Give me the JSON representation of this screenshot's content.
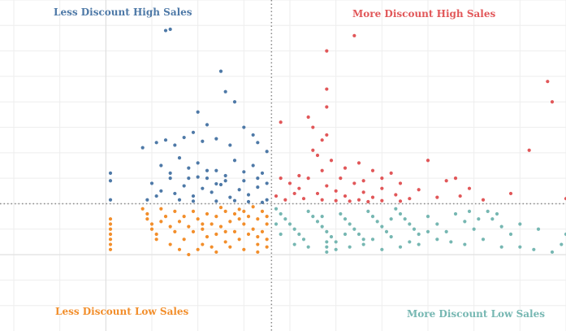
{
  "chart_data": {
    "type": "scatter",
    "title": "",
    "xlabel": "",
    "ylabel": "",
    "grid": true,
    "reference_lines": {
      "x": 0.36,
      "y": 200
    },
    "xlim": [
      -0.23,
      1.0
    ],
    "ylim": [
      -300,
      1000
    ],
    "quadrant_labels": [
      {
        "key": "tl",
        "text": "Less Discount High Sales",
        "color": "#4e79a7"
      },
      {
        "key": "tr",
        "text": "More Discount High Sales",
        "color": "#e15759"
      },
      {
        "key": "bl",
        "text": "Less Discount Low Sales",
        "color": "#f28e2b"
      },
      {
        "key": "br",
        "text": "More Discount Low Sales",
        "color": "#76b7b2"
      }
    ],
    "series": [
      {
        "color": "#4e79a7",
        "points": [
          [
            0.13,
            880
          ],
          [
            0.14,
            885
          ],
          [
            0.2,
            560
          ],
          [
            0.19,
            480
          ],
          [
            0.22,
            510
          ],
          [
            0.3,
            500
          ],
          [
            0.26,
            640
          ],
          [
            0.25,
            720
          ],
          [
            0.28,
            600
          ],
          [
            0.08,
            420
          ],
          [
            0.11,
            440
          ],
          [
            0.13,
            450
          ],
          [
            0.15,
            430
          ],
          [
            0.17,
            460
          ],
          [
            0.21,
            445
          ],
          [
            0.24,
            455
          ],
          [
            0.27,
            430
          ],
          [
            0.32,
            470
          ],
          [
            0.33,
            440
          ],
          [
            0.35,
            405
          ],
          [
            0.12,
            350
          ],
          [
            0.14,
            320
          ],
          [
            0.16,
            380
          ],
          [
            0.18,
            340
          ],
          [
            0.2,
            360
          ],
          [
            0.22,
            300
          ],
          [
            0.24,
            330
          ],
          [
            0.26,
            310
          ],
          [
            0.28,
            370
          ],
          [
            0.3,
            290
          ],
          [
            0.32,
            350
          ],
          [
            0.34,
            320
          ],
          [
            0.35,
            280
          ],
          [
            0.1,
            280
          ],
          [
            0.12,
            250
          ],
          [
            0.15,
            240
          ],
          [
            0.17,
            270
          ],
          [
            0.19,
            230
          ],
          [
            0.21,
            260
          ],
          [
            0.23,
            245
          ],
          [
            0.25,
            275
          ],
          [
            0.27,
            225
          ],
          [
            0.29,
            255
          ],
          [
            0.31,
            235
          ],
          [
            0.33,
            265
          ],
          [
            0.35,
            215
          ],
          [
            0.01,
            320
          ],
          [
            0.01,
            290
          ],
          [
            0.01,
            215
          ],
          [
            0.09,
            215
          ],
          [
            0.11,
            230
          ],
          [
            0.16,
            215
          ],
          [
            0.19,
            210
          ],
          [
            0.24,
            210
          ],
          [
            0.28,
            212
          ],
          [
            0.31,
            208
          ],
          [
            0.34,
            205
          ],
          [
            0.18,
            300
          ],
          [
            0.22,
            330
          ],
          [
            0.26,
            290
          ],
          [
            0.3,
            325
          ],
          [
            0.14,
            300
          ],
          [
            0.2,
            305
          ],
          [
            0.24,
            278
          ],
          [
            0.33,
            300
          ]
        ]
      },
      {
        "color": "#e15759",
        "points": [
          [
            0.54,
            860
          ],
          [
            0.48,
            800
          ],
          [
            0.48,
            650
          ],
          [
            0.48,
            580
          ],
          [
            0.48,
            470
          ],
          [
            0.44,
            540
          ],
          [
            0.45,
            500
          ],
          [
            0.47,
            450
          ],
          [
            0.38,
            520
          ],
          [
            0.45,
            410
          ],
          [
            0.46,
            390
          ],
          [
            0.49,
            370
          ],
          [
            0.52,
            340
          ],
          [
            0.55,
            360
          ],
          [
            0.58,
            330
          ],
          [
            0.6,
            300
          ],
          [
            0.62,
            320
          ],
          [
            0.64,
            280
          ],
          [
            0.7,
            370
          ],
          [
            0.74,
            290
          ],
          [
            0.76,
            300
          ],
          [
            0.79,
            260
          ],
          [
            0.77,
            230
          ],
          [
            0.82,
            215
          ],
          [
            0.88,
            240
          ],
          [
            0.92,
            410
          ],
          [
            0.96,
            680
          ],
          [
            0.97,
            600
          ],
          [
            1.0,
            220
          ],
          [
            0.38,
            300
          ],
          [
            0.4,
            280
          ],
          [
            0.42,
            260
          ],
          [
            0.44,
            300
          ],
          [
            0.46,
            240
          ],
          [
            0.48,
            270
          ],
          [
            0.5,
            250
          ],
          [
            0.52,
            230
          ],
          [
            0.54,
            280
          ],
          [
            0.56,
            245
          ],
          [
            0.58,
            225
          ],
          [
            0.6,
            260
          ],
          [
            0.63,
            235
          ],
          [
            0.66,
            220
          ],
          [
            0.68,
            255
          ],
          [
            0.72,
            225
          ],
          [
            0.37,
            230
          ],
          [
            0.39,
            215
          ],
          [
            0.41,
            240
          ],
          [
            0.43,
            220
          ],
          [
            0.47,
            215
          ],
          [
            0.5,
            212
          ],
          [
            0.53,
            210
          ],
          [
            0.55,
            215
          ],
          [
            0.57,
            208
          ],
          [
            0.6,
            212
          ],
          [
            0.64,
            210
          ],
          [
            0.42,
            310
          ],
          [
            0.47,
            330
          ],
          [
            0.51,
            300
          ],
          [
            0.56,
            290
          ]
        ]
      },
      {
        "color": "#f28e2b",
        "points": [
          [
            0.01,
            140
          ],
          [
            0.01,
            120
          ],
          [
            0.01,
            100
          ],
          [
            0.01,
            80
          ],
          [
            0.01,
            60
          ],
          [
            0.01,
            40
          ],
          [
            0.01,
            20
          ],
          [
            0.08,
            180
          ],
          [
            0.09,
            160
          ],
          [
            0.09,
            140
          ],
          [
            0.1,
            120
          ],
          [
            0.1,
            100
          ],
          [
            0.11,
            80
          ],
          [
            0.11,
            60
          ],
          [
            0.12,
            130
          ],
          [
            0.13,
            150
          ],
          [
            0.14,
            110
          ],
          [
            0.15,
            170
          ],
          [
            0.15,
            90
          ],
          [
            0.16,
            130
          ],
          [
            0.17,
            60
          ],
          [
            0.17,
            150
          ],
          [
            0.18,
            110
          ],
          [
            0.19,
            170
          ],
          [
            0.19,
            90
          ],
          [
            0.2,
            140
          ],
          [
            0.21,
            100
          ],
          [
            0.21,
            40
          ],
          [
            0.22,
            160
          ],
          [
            0.22,
            70
          ],
          [
            0.23,
            120
          ],
          [
            0.24,
            150
          ],
          [
            0.24,
            80
          ],
          [
            0.25,
            110
          ],
          [
            0.26,
            170
          ],
          [
            0.26,
            50
          ],
          [
            0.27,
            130
          ],
          [
            0.28,
            90
          ],
          [
            0.28,
            160
          ],
          [
            0.29,
            60
          ],
          [
            0.3,
            120
          ],
          [
            0.31,
            150
          ],
          [
            0.31,
            80
          ],
          [
            0.32,
            100
          ],
          [
            0.33,
            140
          ],
          [
            0.33,
            40
          ],
          [
            0.34,
            170
          ],
          [
            0.34,
            90
          ],
          [
            0.35,
            120
          ],
          [
            0.35,
            60
          ],
          [
            0.18,
            0
          ],
          [
            0.16,
            20
          ],
          [
            0.2,
            20
          ],
          [
            0.24,
            10
          ],
          [
            0.27,
            30
          ],
          [
            0.3,
            20
          ],
          [
            0.33,
            10
          ],
          [
            0.35,
            30
          ],
          [
            0.12,
            180
          ],
          [
            0.25,
            185
          ],
          [
            0.29,
            178
          ],
          [
            0.32,
            188
          ],
          [
            0.14,
            40
          ],
          [
            0.23,
            30
          ],
          [
            0.26,
            90
          ],
          [
            0.29,
            140
          ],
          [
            0.33,
            70
          ],
          [
            0.21,
            120
          ],
          [
            0.3,
            170
          ],
          [
            0.35,
            150
          ]
        ]
      },
      {
        "color": "#76b7b2",
        "points": [
          [
            0.37,
            180
          ],
          [
            0.38,
            160
          ],
          [
            0.39,
            140
          ],
          [
            0.4,
            120
          ],
          [
            0.41,
            100
          ],
          [
            0.42,
            80
          ],
          [
            0.43,
            60
          ],
          [
            0.44,
            170
          ],
          [
            0.45,
            150
          ],
          [
            0.46,
            130
          ],
          [
            0.47,
            110
          ],
          [
            0.48,
            90
          ],
          [
            0.49,
            70
          ],
          [
            0.5,
            50
          ],
          [
            0.51,
            160
          ],
          [
            0.52,
            140
          ],
          [
            0.53,
            120
          ],
          [
            0.54,
            100
          ],
          [
            0.55,
            80
          ],
          [
            0.56,
            60
          ],
          [
            0.57,
            170
          ],
          [
            0.58,
            150
          ],
          [
            0.59,
            130
          ],
          [
            0.6,
            110
          ],
          [
            0.61,
            90
          ],
          [
            0.62,
            70
          ],
          [
            0.63,
            180
          ],
          [
            0.64,
            160
          ],
          [
            0.65,
            140
          ],
          [
            0.66,
            120
          ],
          [
            0.67,
            100
          ],
          [
            0.68,
            80
          ],
          [
            0.7,
            150
          ],
          [
            0.72,
            120
          ],
          [
            0.74,
            90
          ],
          [
            0.76,
            160
          ],
          [
            0.78,
            130
          ],
          [
            0.8,
            100
          ],
          [
            0.82,
            60
          ],
          [
            0.83,
            170
          ],
          [
            0.84,
            140
          ],
          [
            0.86,
            110
          ],
          [
            0.88,
            80
          ],
          [
            0.9,
            30
          ],
          [
            0.93,
            20
          ],
          [
            0.94,
            100
          ],
          [
            0.97,
            10
          ],
          [
            0.99,
            40
          ],
          [
            1.0,
            80
          ],
          [
            0.48,
            10
          ],
          [
            0.48,
            30
          ],
          [
            0.48,
            50
          ],
          [
            0.5,
            20
          ],
          [
            0.53,
            30
          ],
          [
            0.56,
            40
          ],
          [
            0.6,
            20
          ],
          [
            0.64,
            30
          ],
          [
            0.68,
            40
          ],
          [
            0.72,
            60
          ],
          [
            0.78,
            40
          ],
          [
            0.86,
            30
          ],
          [
            0.37,
            120
          ],
          [
            0.38,
            80
          ],
          [
            0.41,
            40
          ],
          [
            0.44,
            30
          ],
          [
            0.47,
            150
          ],
          [
            0.52,
            80
          ],
          [
            0.58,
            60
          ],
          [
            0.62,
            140
          ],
          [
            0.66,
            50
          ],
          [
            0.7,
            90
          ],
          [
            0.75,
            50
          ],
          [
            0.81,
            140
          ],
          [
            0.85,
            160
          ],
          [
            0.9,
            120
          ],
          [
            0.79,
            170
          ]
        ]
      }
    ]
  }
}
